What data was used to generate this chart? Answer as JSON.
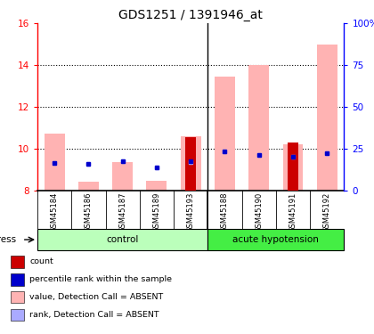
{
  "title": "GDS1251 / 1391946_at",
  "samples": [
    "GSM45184",
    "GSM45186",
    "GSM45187",
    "GSM45189",
    "GSM45193",
    "GSM45188",
    "GSM45190",
    "GSM45191",
    "GSM45192"
  ],
  "groups": {
    "control": [
      0,
      1,
      2,
      3,
      4
    ],
    "acute hypotension": [
      5,
      6,
      7,
      8
    ]
  },
  "ylim_left": [
    8,
    16
  ],
  "ylim_right": [
    0,
    100
  ],
  "yticks_left": [
    8,
    10,
    12,
    14,
    16
  ],
  "yticks_right": [
    0,
    25,
    50,
    75,
    100
  ],
  "ytick_labels_right": [
    "0",
    "25",
    "50",
    "75",
    "100%"
  ],
  "pink_bar_tops": [
    10.7,
    8.4,
    9.35,
    8.45,
    10.6,
    13.45,
    14.0,
    10.2,
    15.0
  ],
  "red_bar_tops": [
    8.0,
    8.0,
    8.0,
    8.0,
    10.55,
    8.0,
    8.0,
    10.3,
    8.0
  ],
  "blue_dot_y": [
    9.3,
    9.25,
    9.4,
    9.1,
    9.4,
    9.85,
    9.7,
    9.6,
    9.8
  ],
  "light_blue_dot_y": [
    9.3,
    9.25,
    9.4,
    9.1,
    9.35,
    9.85,
    9.7,
    9.6,
    9.8
  ],
  "bar_base": 8.0,
  "pink_color": "#FFB3B3",
  "red_color": "#CC0000",
  "blue_color": "#0000CC",
  "light_blue_color": "#AAAAFF",
  "ctrl_color": "#BBFFBB",
  "acute_color": "#44EE44",
  "legend_items": [
    {
      "label": "count",
      "color": "#CC0000"
    },
    {
      "label": "percentile rank within the sample",
      "color": "#0000CC"
    },
    {
      "label": "value, Detection Call = ABSENT",
      "color": "#FFB3B3"
    },
    {
      "label": "rank, Detection Call = ABSENT",
      "color": "#AAAAFF"
    }
  ]
}
